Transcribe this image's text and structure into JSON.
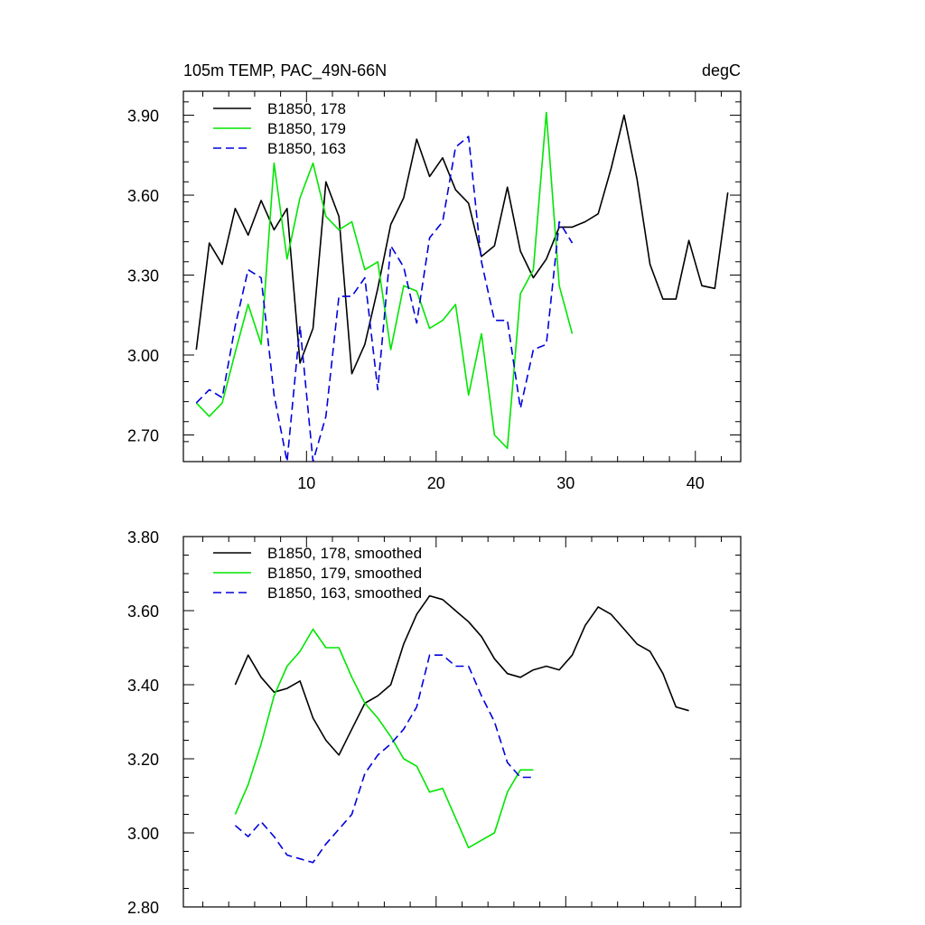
{
  "chart_data": [
    {
      "type": "line",
      "title": "105m TEMP, PAC_49N-66N",
      "units": "degC",
      "xlim": [
        0.5,
        43.5
      ],
      "ylim": [
        2.6,
        3.99
      ],
      "x_ticks": [
        10,
        20,
        30,
        40
      ],
      "y_ticks": [
        2.7,
        3.0,
        3.3,
        3.6,
        3.9
      ],
      "y_tick_labels": [
        "2.70",
        "3.00",
        "3.30",
        "3.60",
        "3.90"
      ],
      "legend_position": "top-left",
      "series": [
        {
          "name": "B1850, 178",
          "color": "#000000",
          "dash": "solid",
          "x_start": 1.5,
          "values": [
            3.02,
            3.42,
            3.34,
            3.55,
            3.45,
            3.58,
            3.47,
            3.55,
            2.97,
            3.1,
            3.65,
            3.52,
            2.93,
            3.04,
            3.25,
            3.49,
            3.59,
            3.81,
            3.67,
            3.74,
            3.62,
            3.57,
            3.37,
            3.41,
            3.63,
            3.39,
            3.29,
            3.36,
            3.48,
            3.48,
            3.5,
            3.53,
            3.7,
            3.9,
            3.66,
            3.34,
            3.21,
            3.21,
            3.43,
            3.26,
            3.25,
            3.61
          ]
        },
        {
          "name": "B1850, 179",
          "color": "#00e600",
          "dash": "solid",
          "x_start": 1.5,
          "values": [
            2.82,
            2.77,
            2.82,
            3.01,
            3.19,
            3.04,
            3.72,
            3.36,
            3.59,
            3.72,
            3.52,
            3.47,
            3.5,
            3.32,
            3.35,
            3.02,
            3.26,
            3.24,
            3.1,
            3.13,
            3.19,
            2.85,
            3.08,
            2.7,
            2.65,
            3.23,
            3.32,
            3.91,
            3.26,
            3.08
          ]
        },
        {
          "name": "B1850, 163",
          "color": "#0000dd",
          "dash": "dashed",
          "x_start": 1.5,
          "values": [
            2.82,
            2.87,
            2.84,
            3.11,
            3.32,
            3.29,
            2.85,
            2.6,
            3.11,
            2.6,
            2.77,
            3.22,
            3.22,
            3.29,
            2.87,
            3.41,
            3.33,
            3.12,
            3.44,
            3.5,
            3.78,
            3.82,
            3.35,
            3.13,
            3.13,
            2.8,
            3.02,
            3.04,
            3.5,
            3.42
          ]
        }
      ]
    },
    {
      "type": "line",
      "xlim": [
        0.5,
        43.5
      ],
      "ylim": [
        2.8,
        3.8
      ],
      "x_ticks": [
        10,
        20,
        30,
        40
      ],
      "y_ticks": [
        2.8,
        3.0,
        3.2,
        3.4,
        3.6,
        3.8
      ],
      "y_tick_labels": [
        "2.80",
        "3.00",
        "3.20",
        "3.40",
        "3.60",
        "3.80"
      ],
      "legend_position": "top-left",
      "series": [
        {
          "name": "B1850, 178, smoothed",
          "color": "#000000",
          "dash": "solid",
          "x_start": 4.5,
          "values": [
            3.4,
            3.48,
            3.42,
            3.38,
            3.39,
            3.41,
            3.31,
            3.25,
            3.21,
            3.28,
            3.35,
            3.37,
            3.4,
            3.51,
            3.59,
            3.64,
            3.63,
            3.6,
            3.57,
            3.53,
            3.47,
            3.43,
            3.42,
            3.44,
            3.45,
            3.44,
            3.48,
            3.56,
            3.61,
            3.59,
            3.55,
            3.51,
            3.49,
            3.43,
            3.34,
            3.33
          ]
        },
        {
          "name": "B1850, 179, smoothed",
          "color": "#00e600",
          "dash": "solid",
          "x_start": 4.5,
          "values": [
            3.05,
            3.13,
            3.24,
            3.37,
            3.45,
            3.49,
            3.55,
            3.5,
            3.5,
            3.42,
            3.35,
            3.31,
            3.26,
            3.2,
            3.18,
            3.11,
            3.12,
            3.04,
            2.96,
            2.98,
            3.0,
            3.11,
            3.17,
            3.17
          ]
        },
        {
          "name": "B1850, 163, smoothed",
          "color": "#0000dd",
          "dash": "dashed",
          "x_start": 4.5,
          "values": [
            3.02,
            2.99,
            3.03,
            2.99,
            2.94,
            2.93,
            2.92,
            2.97,
            3.01,
            3.05,
            3.16,
            3.21,
            3.24,
            3.28,
            3.34,
            3.48,
            3.48,
            3.45,
            3.45,
            3.37,
            3.3,
            3.19,
            3.15,
            3.15
          ]
        }
      ]
    }
  ]
}
